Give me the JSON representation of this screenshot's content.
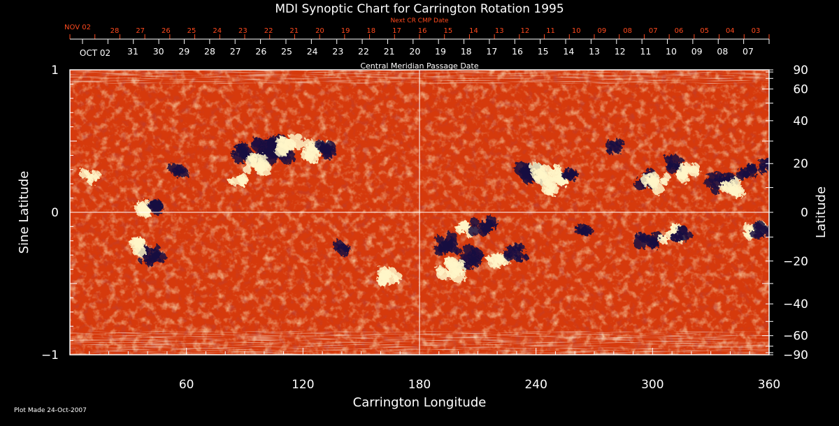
{
  "chart_data": {
    "type": "heatmap",
    "title": "MDI Synoptic Chart for Carrington Rotation 1995",
    "xlabel": "Carrington Longitude",
    "ylabel_left": "Sine Latitude",
    "ylabel_right": "Latitude",
    "xlim": [
      0,
      360
    ],
    "ylim": [
      -1,
      1
    ],
    "x_ticks": [
      60,
      120,
      180,
      240,
      300,
      360
    ],
    "y_left_ticks": [
      {
        "value": 1,
        "label": "1"
      },
      {
        "value": 0,
        "label": "0"
      },
      {
        "value": -1,
        "label": "−1"
      }
    ],
    "y_right_ticks": [
      {
        "deg": 90,
        "label": "90"
      },
      {
        "deg": 60,
        "label": "60"
      },
      {
        "deg": 40,
        "label": "40"
      },
      {
        "deg": 20,
        "label": "20"
      },
      {
        "deg": 0,
        "label": "0"
      },
      {
        "deg": -20,
        "label": "−20"
      },
      {
        "deg": -40,
        "label": "−40"
      },
      {
        "deg": -60,
        "label": "−60"
      },
      {
        "deg": -90,
        "label": "−90"
      }
    ],
    "cmp_axis_label": "Central Meridian Passage Date",
    "cmp_first_label": "OCT 02",
    "cmp_dates": [
      "31",
      "30",
      "29",
      "28",
      "27",
      "26",
      "25",
      "24",
      "23",
      "22",
      "21",
      "20",
      "19",
      "18",
      "17",
      "16",
      "15",
      "14",
      "13",
      "12",
      "11",
      "10",
      "09",
      "08",
      "07"
    ],
    "next_cmp_axis_label": "Next CR CMP Date",
    "next_cmp_first_label": "NOV 02",
    "next_cmp_dates": [
      "28",
      "27",
      "26",
      "25",
      "24",
      "23",
      "22",
      "21",
      "20",
      "19",
      "18",
      "17",
      "16",
      "15",
      "14",
      "13",
      "12",
      "11",
      "10",
      "09",
      "08",
      "07",
      "06",
      "05",
      "04",
      "03"
    ],
    "footer": "Plot Made 24-Oct-2007",
    "colors": {
      "background": "#000000",
      "field_base": "#d8380c",
      "positive_polarity": "#fff6c8",
      "negative_polarity": "#1a1040",
      "next_cmp_text": "#ff4a1e",
      "axes": "#ffffff"
    },
    "magnetic_regions": [
      {
        "lon": 40,
        "sinlat": 0.02,
        "polarity": "positive",
        "strength": 0.7
      },
      {
        "lon": 43,
        "sinlat": 0.05,
        "polarity": "negative",
        "strength": 0.6
      },
      {
        "lon": 42,
        "sinlat": -0.3,
        "polarity": "negative",
        "strength": 0.8
      },
      {
        "lon": 36,
        "sinlat": -0.24,
        "polarity": "positive",
        "strength": 0.6
      },
      {
        "lon": 10,
        "sinlat": 0.25,
        "polarity": "positive",
        "strength": 0.5
      },
      {
        "lon": 55,
        "sinlat": 0.3,
        "polarity": "negative",
        "strength": 0.5
      },
      {
        "lon": 88,
        "sinlat": 0.42,
        "polarity": "negative",
        "strength": 0.7
      },
      {
        "lon": 100,
        "sinlat": 0.44,
        "polarity": "negative",
        "strength": 1.0
      },
      {
        "lon": 108,
        "sinlat": 0.44,
        "polarity": "negative",
        "strength": 1.0
      },
      {
        "lon": 113,
        "sinlat": 0.48,
        "polarity": "positive",
        "strength": 0.8
      },
      {
        "lon": 126,
        "sinlat": 0.44,
        "polarity": "positive",
        "strength": 0.9
      },
      {
        "lon": 133,
        "sinlat": 0.44,
        "polarity": "negative",
        "strength": 0.7
      },
      {
        "lon": 96,
        "sinlat": 0.34,
        "polarity": "positive",
        "strength": 0.8
      },
      {
        "lon": 86,
        "sinlat": 0.22,
        "polarity": "positive",
        "strength": 0.5
      },
      {
        "lon": 140,
        "sinlat": -0.25,
        "polarity": "negative",
        "strength": 0.5
      },
      {
        "lon": 165,
        "sinlat": -0.45,
        "polarity": "positive",
        "strength": 0.7
      },
      {
        "lon": 193,
        "sinlat": -0.22,
        "polarity": "negative",
        "strength": 0.8
      },
      {
        "lon": 205,
        "sinlat": -0.32,
        "polarity": "negative",
        "strength": 0.9
      },
      {
        "lon": 196,
        "sinlat": -0.4,
        "polarity": "positive",
        "strength": 0.9
      },
      {
        "lon": 205,
        "sinlat": -0.12,
        "polarity": "positive",
        "strength": 0.6
      },
      {
        "lon": 213,
        "sinlat": -0.1,
        "polarity": "negative",
        "strength": 0.7
      },
      {
        "lon": 220,
        "sinlat": -0.35,
        "polarity": "positive",
        "strength": 0.6
      },
      {
        "lon": 230,
        "sinlat": -0.28,
        "polarity": "negative",
        "strength": 0.8
      },
      {
        "lon": 238,
        "sinlat": 0.28,
        "polarity": "negative",
        "strength": 0.8
      },
      {
        "lon": 245,
        "sinlat": 0.28,
        "polarity": "positive",
        "strength": 0.9
      },
      {
        "lon": 249,
        "sinlat": 0.2,
        "polarity": "positive",
        "strength": 0.8
      },
      {
        "lon": 258,
        "sinlat": 0.25,
        "polarity": "negative",
        "strength": 0.6
      },
      {
        "lon": 265,
        "sinlat": -0.12,
        "polarity": "negative",
        "strength": 0.5
      },
      {
        "lon": 280,
        "sinlat": 0.46,
        "polarity": "negative",
        "strength": 0.5
      },
      {
        "lon": 297,
        "sinlat": 0.22,
        "polarity": "negative",
        "strength": 0.7
      },
      {
        "lon": 302,
        "sinlat": 0.2,
        "polarity": "positive",
        "strength": 0.8
      },
      {
        "lon": 312,
        "sinlat": 0.34,
        "polarity": "negative",
        "strength": 0.6
      },
      {
        "lon": 318,
        "sinlat": 0.28,
        "polarity": "positive",
        "strength": 0.7
      },
      {
        "lon": 335,
        "sinlat": 0.2,
        "polarity": "negative",
        "strength": 0.9
      },
      {
        "lon": 340,
        "sinlat": 0.18,
        "polarity": "positive",
        "strength": 0.7
      },
      {
        "lon": 348,
        "sinlat": 0.3,
        "polarity": "negative",
        "strength": 0.6
      },
      {
        "lon": 360,
        "sinlat": 0.32,
        "polarity": "negative",
        "strength": 0.6
      },
      {
        "lon": 298,
        "sinlat": -0.2,
        "polarity": "negative",
        "strength": 0.8
      },
      {
        "lon": 310,
        "sinlat": -0.15,
        "polarity": "positive",
        "strength": 0.7
      },
      {
        "lon": 315,
        "sinlat": -0.16,
        "polarity": "negative",
        "strength": 0.6
      },
      {
        "lon": 352,
        "sinlat": -0.14,
        "polarity": "positive",
        "strength": 0.6
      },
      {
        "lon": 356,
        "sinlat": -0.12,
        "polarity": "negative",
        "strength": 0.6
      }
    ]
  }
}
